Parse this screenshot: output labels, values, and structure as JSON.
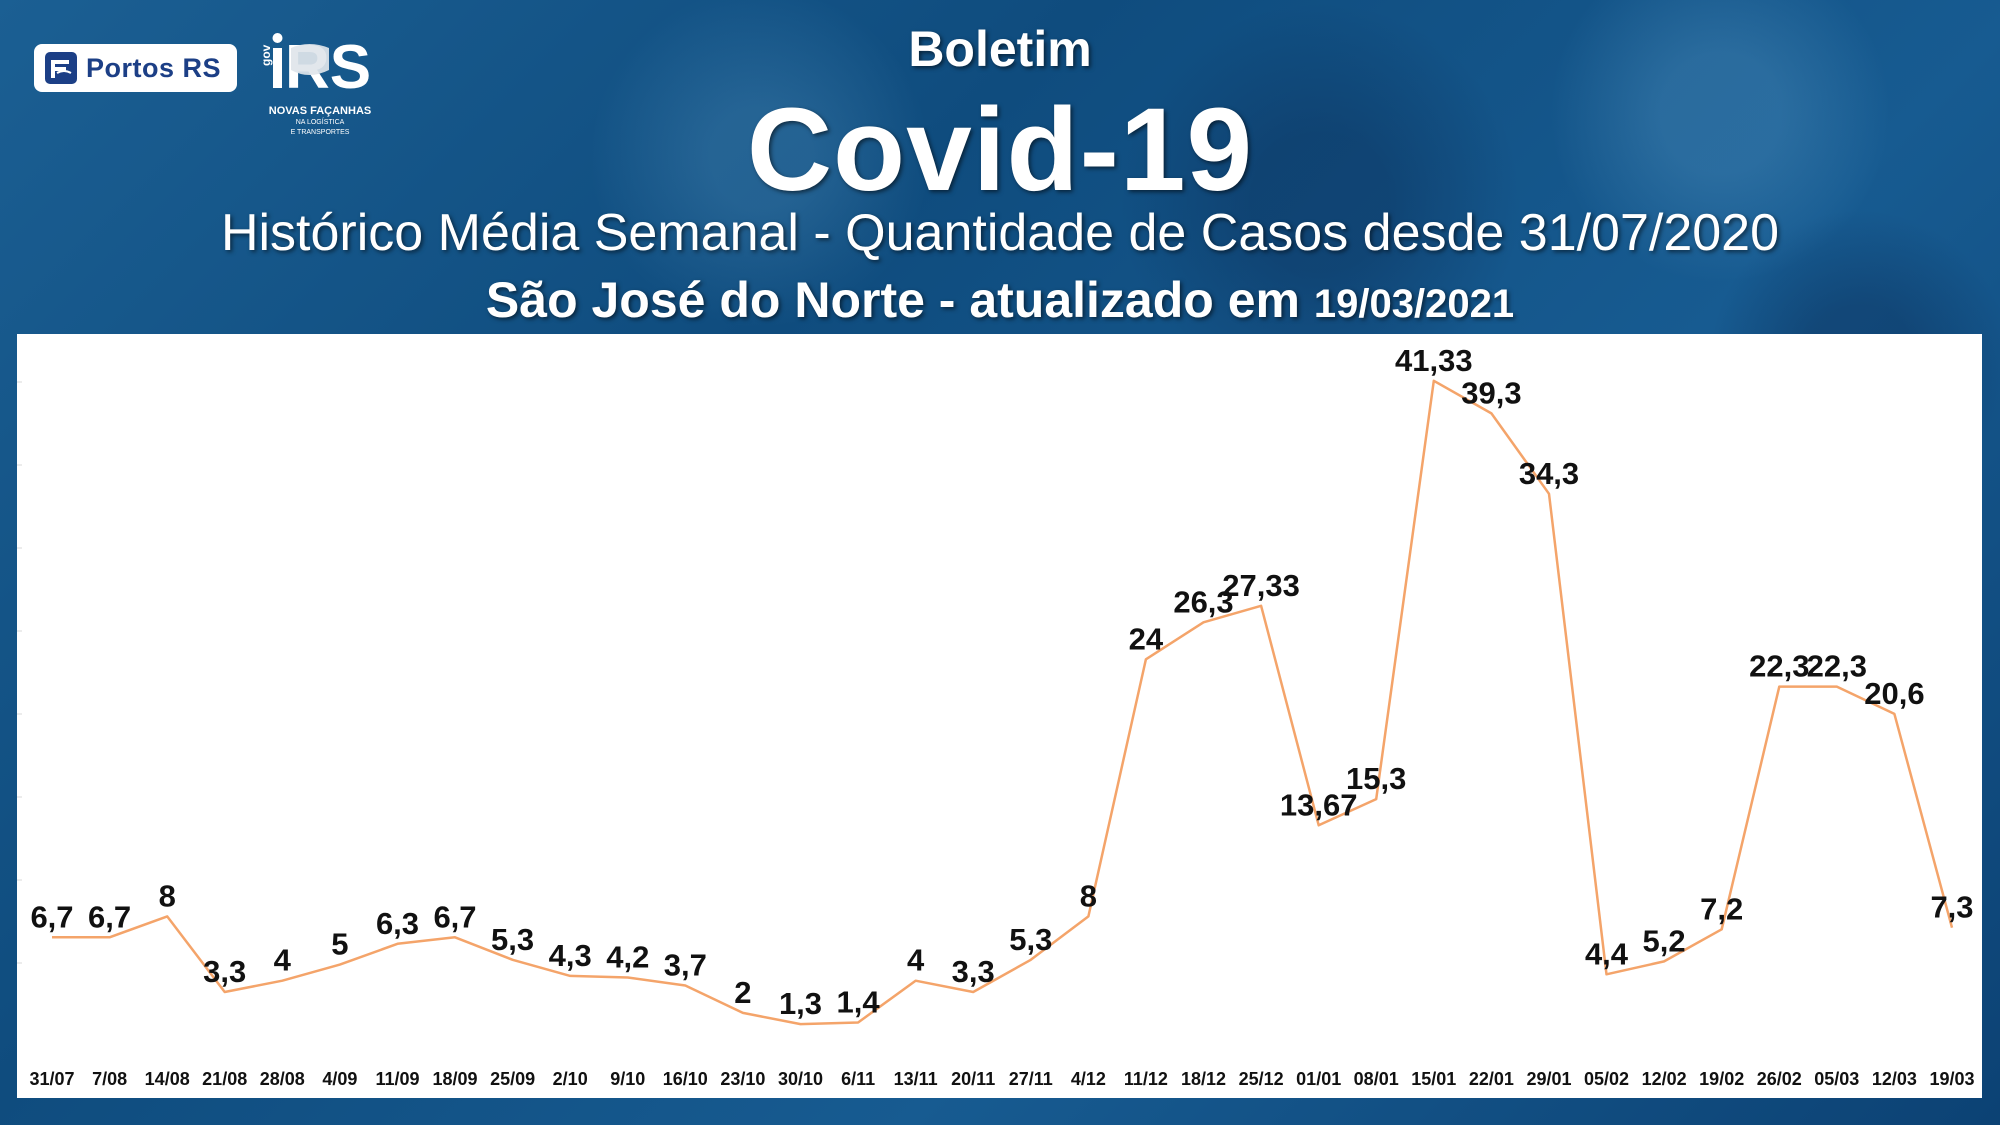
{
  "header": {
    "boletim": "Boletim",
    "covid": "Covid-19",
    "historico": "Histórico Média Semanal - Quantidade de Casos desde 31/07/2020",
    "location_prefix": "São José do Norte - atualizado em ",
    "updated_date": "19/03/2021"
  },
  "logos": {
    "portos_label": "Portos RS",
    "rs_gov": "gov",
    "rs_letters": "RS",
    "rs_tagline": "NOVAS FAÇANHAS",
    "rs_subtag_1": "NA LOGÍSTICA",
    "rs_subtag_2": "E TRANSPORTES"
  },
  "colors": {
    "line": "#f4a46a",
    "label": "#111111",
    "tick": "#111111"
  },
  "chart_data": {
    "type": "line",
    "title": "",
    "xlabel": "",
    "ylabel": "",
    "ylim": [
      0,
      42
    ],
    "grid": false,
    "categories": [
      "31/07",
      "7/08",
      "14/08",
      "21/08",
      "28/08",
      "4/09",
      "11/09",
      "18/09",
      "25/09",
      "2/10",
      "9/10",
      "16/10",
      "23/10",
      "30/10",
      "6/11",
      "13/11",
      "20/11",
      "27/11",
      "4/12",
      "11/12",
      "18/12",
      "25/12",
      "01/01",
      "08/01",
      "15/01",
      "22/01",
      "29/01",
      "05/02",
      "12/02",
      "19/02",
      "26/02",
      "05/03",
      "12/03",
      "19/03"
    ],
    "series": [
      {
        "name": "",
        "values": [
          6.7,
          6.7,
          8,
          3.3,
          4,
          5,
          6.3,
          6.7,
          5.3,
          4.3,
          4.2,
          3.7,
          2,
          1.3,
          1.4,
          4,
          3.3,
          5.3,
          8,
          24,
          26.3,
          27.33,
          13.67,
          15.3,
          41.33,
          39.3,
          34.3,
          4.4,
          5.2,
          7.2,
          22.3,
          22.3,
          20.6,
          7.3
        ],
        "labels": [
          "6,7",
          "6,7",
          "8",
          "3,3",
          "4",
          "5",
          "6,3",
          "6,7",
          "5,3",
          "4,3",
          "4,2",
          "3,7",
          "2",
          "1,3",
          "1,4",
          "4",
          "3,3",
          "5,3",
          "8",
          "24",
          "26,3",
          "27,33",
          "13,67",
          "15,3",
          "41,33",
          "39,3",
          "34,3",
          "4,4",
          "5,2",
          "7,2",
          "22,3",
          "22,3",
          "20,6",
          "7,3"
        ]
      }
    ]
  }
}
